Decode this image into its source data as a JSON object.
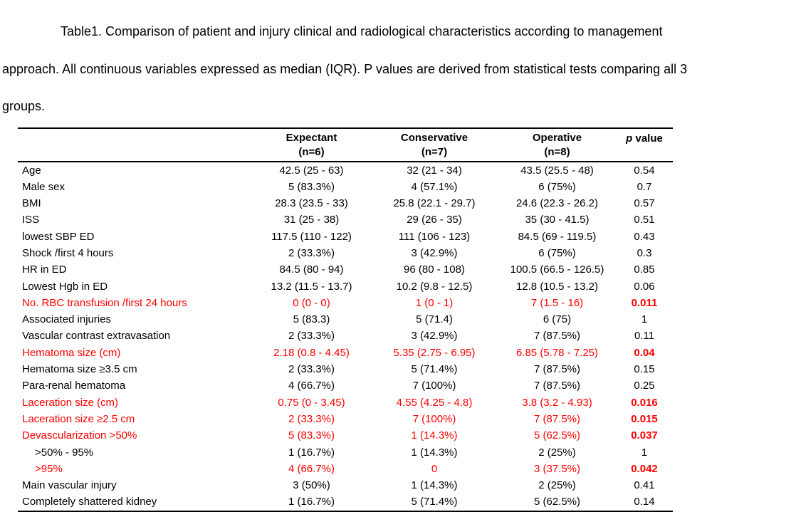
{
  "colors": {
    "text": "#000000",
    "highlight_red": "#ff0000",
    "background": "#ffffff"
  },
  "caption": {
    "lines": [
      "Table1. Comparison of patient and injury clinical and radiological characteristics according to management",
      "approach. All continuous variables expressed as median (IQR). P values are derived from statistical tests comparing all 3",
      "groups."
    ]
  },
  "table": {
    "group_columns": [
      {
        "name": "Expectant",
        "n": "(n=6)"
      },
      {
        "name": "Conservative",
        "n": "(n=7)"
      },
      {
        "name": "Operative",
        "n": "(n=8)"
      }
    ],
    "p_value_header": {
      "p": "p",
      "rest": " value"
    },
    "rows": [
      {
        "label": "Age",
        "values": [
          "42.5 (25 - 63)",
          "32 (21 - 34)",
          "43.5 (25.5 - 48)"
        ],
        "p": "0.54",
        "red": false,
        "indent": false
      },
      {
        "label": "Male sex",
        "values": [
          "5 (83.3%)",
          "4 (57.1%)",
          "6 (75%)"
        ],
        "p": "0.7",
        "red": false,
        "indent": false
      },
      {
        "label": "BMI",
        "values": [
          "28.3 (23.5 - 33)",
          "25.8 (22.1 - 29.7)",
          "24.6 (22.3 - 26.2)"
        ],
        "p": "0.57",
        "red": false,
        "indent": false
      },
      {
        "label": "ISS",
        "values": [
          "31 (25 - 38)",
          "29 (26 - 35)",
          "35 (30 - 41.5)"
        ],
        "p": "0.51",
        "red": false,
        "indent": false
      },
      {
        "label": "lowest SBP ED",
        "values": [
          "117.5 (110 - 122)",
          "111 (106 - 123)",
          "84.5 (69 - 119.5)"
        ],
        "p": "0.43",
        "red": false,
        "indent": false
      },
      {
        "label": "Shock /first 4 hours",
        "values": [
          "2 (33.3%)",
          "3 (42.9%)",
          "6 (75%)"
        ],
        "p": "0.3",
        "red": false,
        "indent": false
      },
      {
        "label": "HR in ED",
        "values": [
          "84.5 (80 - 94)",
          "96 (80 - 108)",
          "100.5 (66.5 - 126.5)"
        ],
        "p": "0.85",
        "red": false,
        "indent": false
      },
      {
        "label": "Lowest Hgb in ED",
        "values": [
          "13.2 (11.5 - 13.7)",
          "10.2 (9.8 - 12.5)",
          "12.8 (10.5 - 13.2)"
        ],
        "p": "0.06",
        "red": false,
        "indent": false
      },
      {
        "label": "No. RBC transfusion /first 24 hours",
        "values": [
          "0 (0 - 0)",
          "1 (0 - 1)",
          "7 (1.5 - 16)"
        ],
        "p": "0.011",
        "red": true,
        "indent": false
      },
      {
        "label": "Associated injuries",
        "values": [
          "5 (83.3)",
          "5 (71.4)",
          "6 (75)"
        ],
        "p": "1",
        "red": false,
        "indent": false
      },
      {
        "label": "Vascular contrast extravasation",
        "values": [
          "2 (33.3%)",
          "3 (42.9%)",
          "7 (87.5%)"
        ],
        "p": "0.11",
        "red": false,
        "indent": false
      },
      {
        "label": "Hematoma size (cm)",
        "values": [
          "2.18 (0.8 - 4.45)",
          "5.35 (2.75 - 6.95)",
          "6.85 (5.78 - 7.25)"
        ],
        "p": "0.04",
        "red": true,
        "indent": false
      },
      {
        "label": "Hematoma size ≥3.5 cm",
        "values": [
          "2 (33.3%)",
          "5 (71.4%)",
          "7 (87.5%)"
        ],
        "p": "0.15",
        "red": false,
        "indent": false
      },
      {
        "label": "Para-renal hematoma",
        "values": [
          "4 (66.7%)",
          "7 (100%)",
          "7 (87.5%)"
        ],
        "p": "0.25",
        "red": false,
        "indent": false
      },
      {
        "label": "Laceration size (cm)",
        "values": [
          "0.75 (0 - 3.45)",
          "4.55 (4.25 - 4.8)",
          "3.8 (3.2 - 4.93)"
        ],
        "p": "0.016",
        "red": true,
        "indent": false
      },
      {
        "label": "Laceration size ≥2.5 cm",
        "values": [
          "2 (33.3%)",
          "7 (100%)",
          "7 (87.5%)"
        ],
        "p": "0.015",
        "red": true,
        "indent": false
      },
      {
        "label": "Devascularization >50%",
        "values": [
          "5 (83.3%)",
          "1 (14.3%)",
          "5 (62.5%)"
        ],
        "p": "0.037",
        "red": true,
        "indent": false
      },
      {
        "label": ">50% - 95%",
        "values": [
          "1 (16.7%)",
          "1 (14.3%)",
          "2 (25%)"
        ],
        "p": "1",
        "red": false,
        "indent": true
      },
      {
        "label": ">95%",
        "values": [
          "4 (66.7%)",
          "0",
          "3 (37.5%)"
        ],
        "p": "0.042",
        "red": true,
        "indent": true
      },
      {
        "label": "Main vascular injury",
        "values": [
          "3 (50%)",
          "1 (14.3%)",
          "2 (25%)"
        ],
        "p": "0.41",
        "red": false,
        "indent": false
      },
      {
        "label": "Completely shattered kidney",
        "values": [
          "1 (16.7%)",
          "5 (71.4%)",
          "5 (62.5%)"
        ],
        "p": "0.14",
        "red": false,
        "indent": false
      }
    ]
  }
}
